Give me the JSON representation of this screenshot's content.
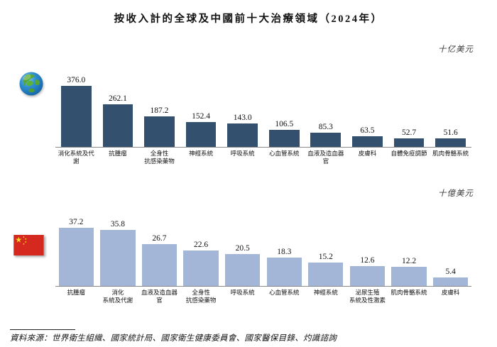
{
  "title": "按收入計的全球及中國前十大治療領域（2024年）",
  "footer": {
    "source_note": "資料來源：世界衛生組織、國家統計局、國家衛生健康委員會、國家醫保目錄、灼識諮詢"
  },
  "icons": {
    "global": "globe-icon",
    "china": "china-flag-icon"
  },
  "chart_data": [
    {
      "type": "bar",
      "region": "global",
      "unit_label": "十亿美元",
      "bar_color": "#34506f",
      "categories": [
        "消化系統及代謝",
        "抗腫瘤",
        "全身性\n抗感染藥物",
        "神經系統",
        "呼吸系統",
        "心血管系統",
        "血液及造血器官",
        "皮膚科",
        "自體免疫調節",
        "肌肉骨骼系統"
      ],
      "values": [
        376.0,
        262.1,
        187.2,
        152.4,
        143.0,
        106.5,
        85.3,
        63.5,
        52.7,
        51.6
      ],
      "ylim": [
        0,
        400
      ],
      "grid": false,
      "value_labels": true,
      "legend": "none"
    },
    {
      "type": "bar",
      "region": "china",
      "unit_label": "十億美元",
      "bar_color": "#a3b6d8",
      "categories": [
        "抗腫瘤",
        "消化\n系統及代謝",
        "血液及造血器官",
        "全身性\n抗感染藥物",
        "呼吸系統",
        "心血管系統",
        "神經系統",
        "泌尿生殖\n系統及性激素",
        "肌肉骨骼系統",
        "皮膚科"
      ],
      "values": [
        37.2,
        35.8,
        26.7,
        22.6,
        20.5,
        18.3,
        15.2,
        12.6,
        12.2,
        5.4
      ],
      "ylim": [
        0,
        40
      ],
      "grid": false,
      "value_labels": true,
      "legend": "none"
    }
  ]
}
